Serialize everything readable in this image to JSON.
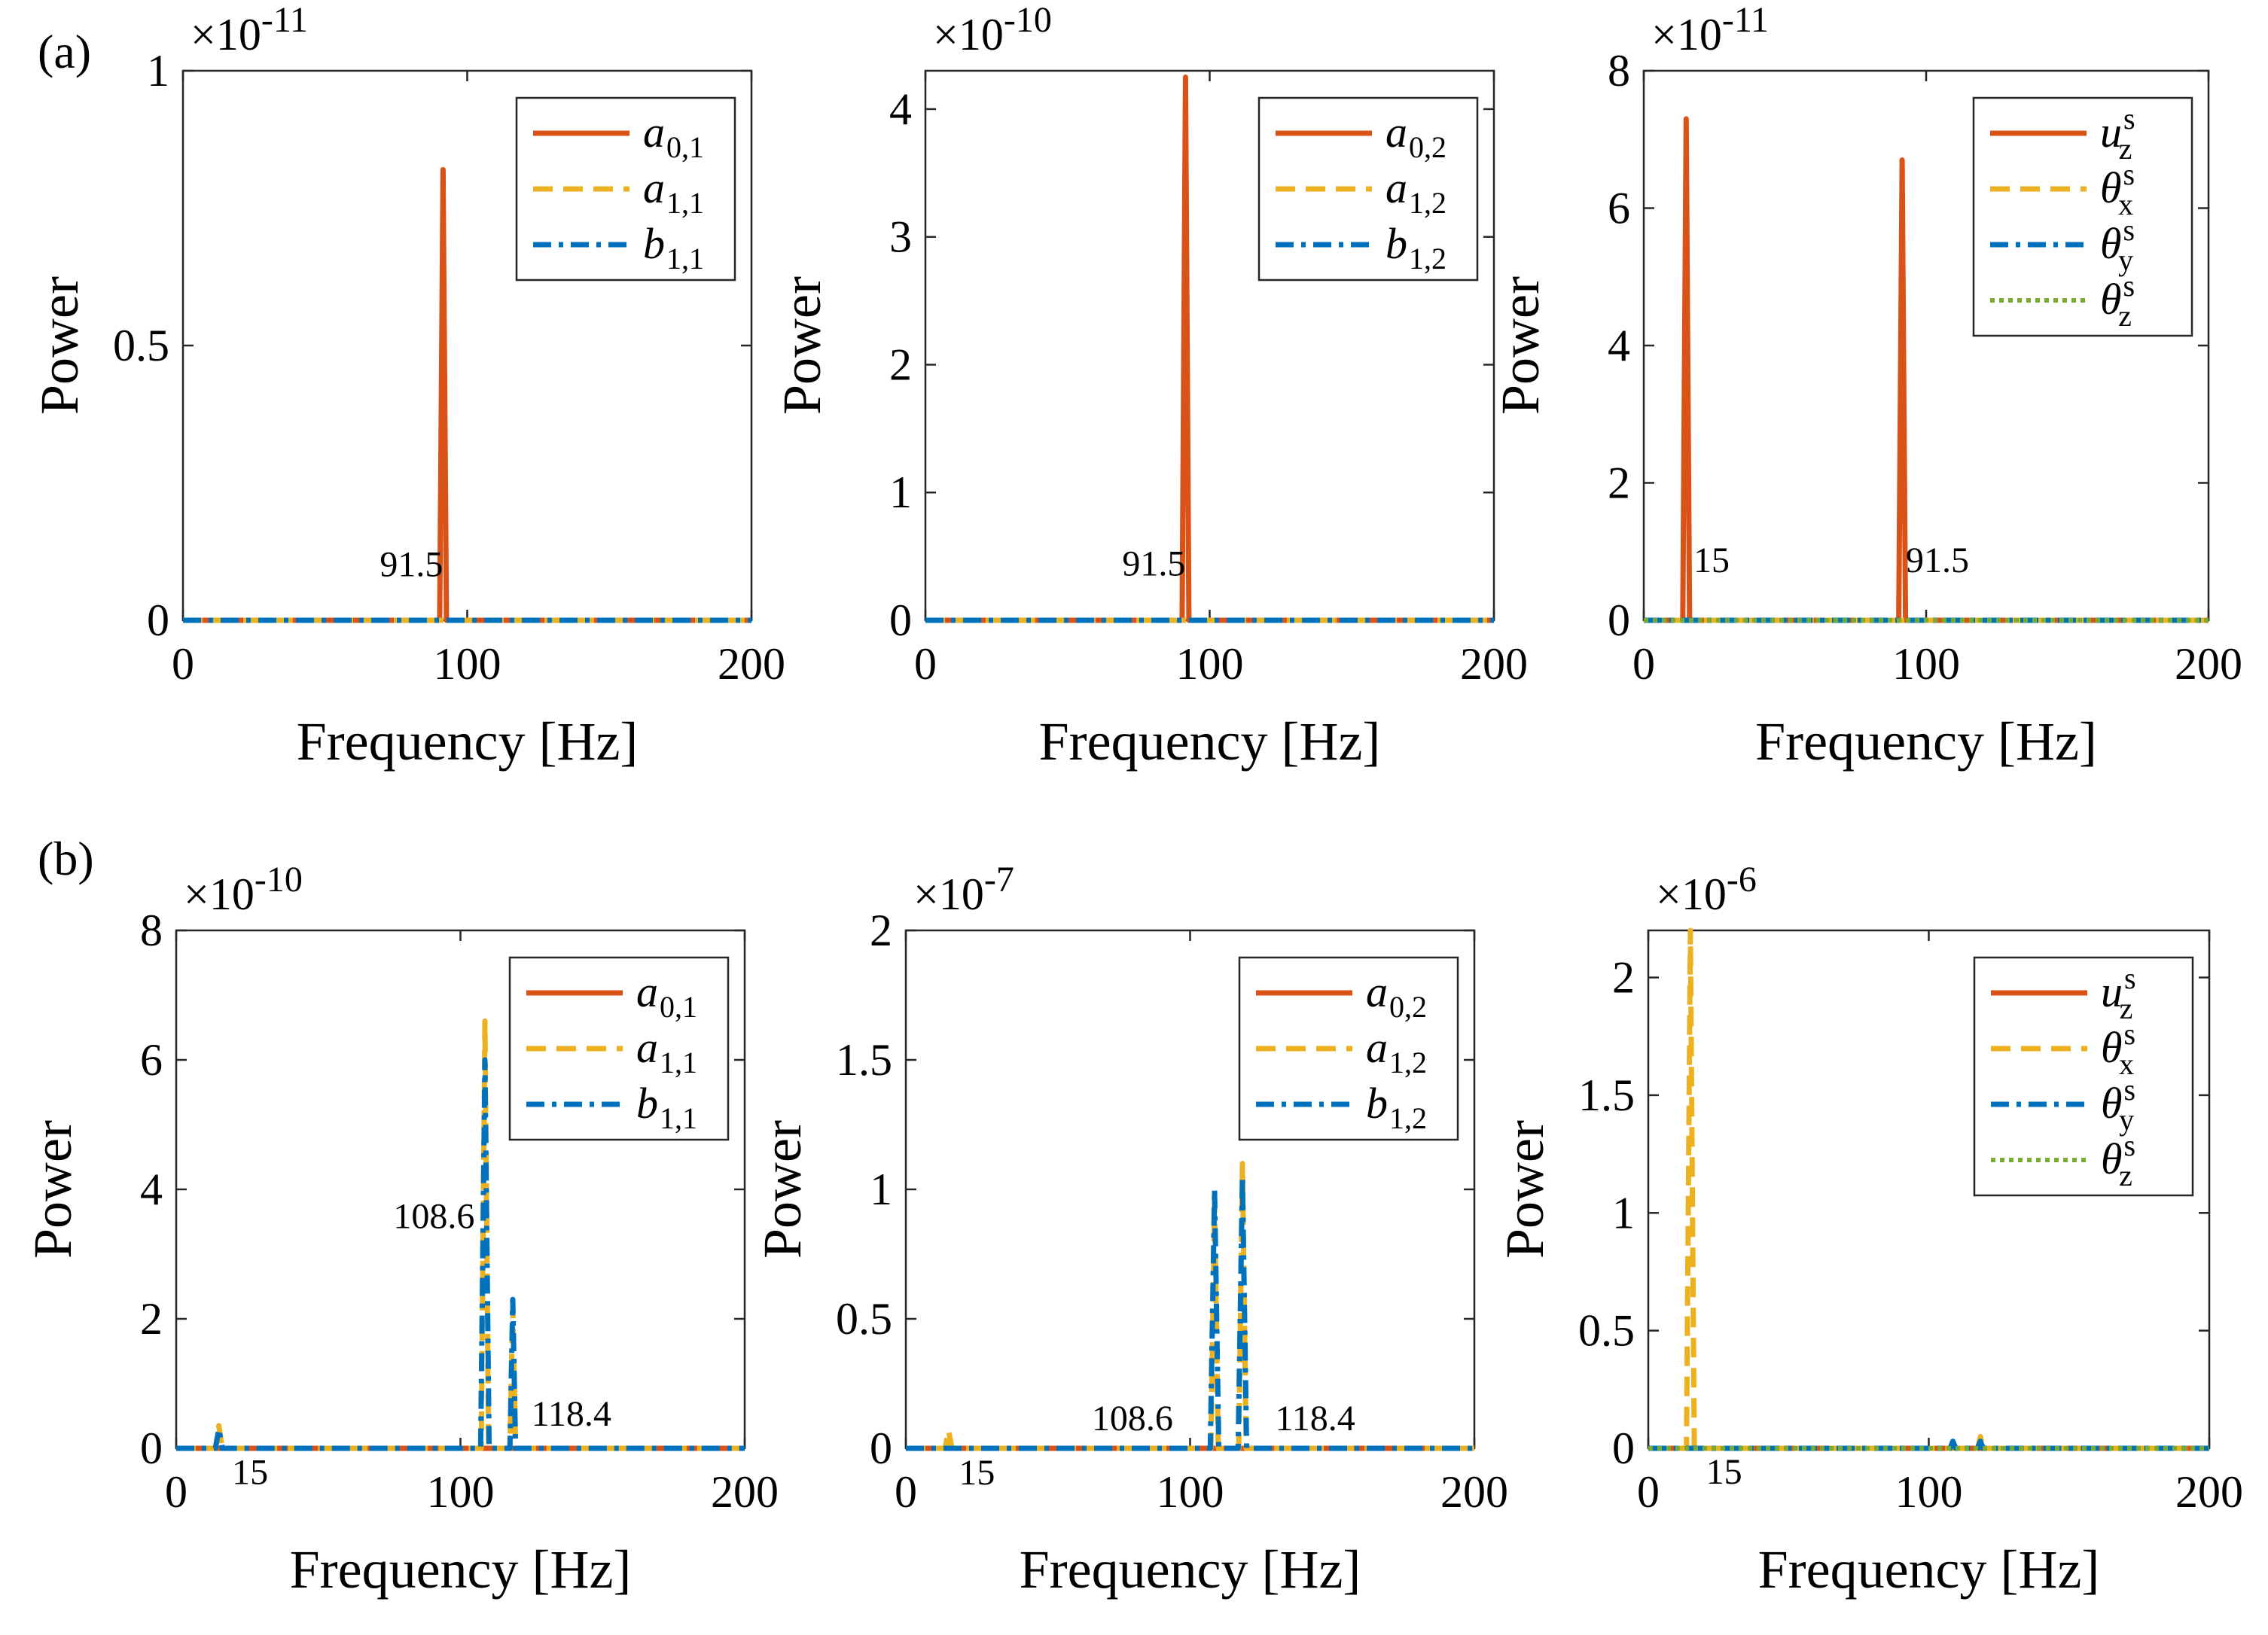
{
  "figure": {
    "panel_labels": [
      "(a)",
      "(b)"
    ]
  },
  "chart_data": [
    {
      "type": "line",
      "row": "a",
      "col": 1,
      "multiplier": {
        "base": "×10",
        "exp": "-11"
      },
      "xlabel": "Frequency [Hz]",
      "ylabel": "Power",
      "xlim": [
        0,
        200
      ],
      "ylim": [
        0,
        1
      ],
      "xticks": [
        0,
        100,
        200
      ],
      "yticks": [
        0,
        0.5,
        1
      ],
      "series": [
        {
          "name": "a0,1",
          "sym": "a",
          "sub": "0,1",
          "sup": "",
          "color": "#D95319",
          "style": "solid",
          "peaks": [
            {
              "x": 91.5,
              "y": 0.82,
              "w": 1.2
            }
          ]
        },
        {
          "name": "a1,1",
          "sym": "a",
          "sub": "1,1",
          "sup": "",
          "color": "#EDB120",
          "style": "dashed",
          "peaks": []
        },
        {
          "name": "b1,1",
          "sym": "b",
          "sub": "1,1",
          "sup": "",
          "color": "#0072BD",
          "style": "dashdot",
          "peaks": []
        }
      ],
      "annotations": [
        {
          "text": "91.5",
          "x": 91.5,
          "y": 0.08,
          "anchor": "end"
        }
      ]
    },
    {
      "type": "line",
      "row": "a",
      "col": 2,
      "multiplier": {
        "base": "×10",
        "exp": "-10"
      },
      "xlabel": "Frequency [Hz]",
      "ylabel": "Power",
      "xlim": [
        0,
        200
      ],
      "ylim": [
        0,
        4.3
      ],
      "xticks": [
        0,
        100,
        200
      ],
      "yticks": [
        0,
        1,
        2,
        3,
        4
      ],
      "series": [
        {
          "name": "a0,2",
          "sym": "a",
          "sub": "0,2",
          "sup": "",
          "color": "#D95319",
          "style": "solid",
          "peaks": [
            {
              "x": 91.5,
              "y": 4.25,
              "w": 1.2
            }
          ]
        },
        {
          "name": "a1,2",
          "sym": "a",
          "sub": "1,2",
          "sup": "",
          "color": "#EDB120",
          "style": "dashed",
          "peaks": []
        },
        {
          "name": "b1,2",
          "sym": "b",
          "sub": "1,2",
          "sup": "",
          "color": "#0072BD",
          "style": "dashdot",
          "peaks": []
        }
      ],
      "annotations": [
        {
          "text": "91.5",
          "x": 91.5,
          "y": 0.35,
          "anchor": "end"
        }
      ]
    },
    {
      "type": "line",
      "row": "a",
      "col": 3,
      "multiplier": {
        "base": "×10",
        "exp": "-11"
      },
      "xlabel": "Frequency [Hz]",
      "ylabel": "Power",
      "xlim": [
        0,
        200
      ],
      "ylim": [
        0,
        8
      ],
      "xticks": [
        0,
        100,
        200
      ],
      "yticks": [
        0,
        2,
        4,
        6,
        8
      ],
      "series": [
        {
          "name": "uz s",
          "sym": "u",
          "sub": "z",
          "sup": "s",
          "color": "#D95319",
          "style": "solid",
          "peaks": [
            {
              "x": 15,
              "y": 7.3,
              "w": 1.2
            },
            {
              "x": 91.5,
              "y": 6.7,
              "w": 1.2
            }
          ]
        },
        {
          "name": "θx s",
          "sym": "θ",
          "sub": "x",
          "sup": "s",
          "color": "#EDB120",
          "style": "dashed",
          "peaks": []
        },
        {
          "name": "θy s",
          "sym": "θ",
          "sub": "y",
          "sup": "s",
          "color": "#0072BD",
          "style": "dashdot",
          "peaks": []
        },
        {
          "name": "θz s",
          "sym": "θ",
          "sub": "z",
          "sup": "s",
          "color": "#77AC30",
          "style": "dotted",
          "peaks": []
        }
      ],
      "annotations": [
        {
          "text": "15",
          "x": 24,
          "y": 0.7,
          "anchor": "middle"
        },
        {
          "text": "91.5",
          "x": 104,
          "y": 0.7,
          "anchor": "middle"
        }
      ]
    },
    {
      "type": "line",
      "row": "b",
      "col": 1,
      "multiplier": {
        "base": "×10",
        "exp": "-10"
      },
      "xlabel": "Frequency [Hz]",
      "ylabel": "Power",
      "xlim": [
        0,
        200
      ],
      "ylim": [
        0,
        8
      ],
      "xticks": [
        0,
        100,
        200
      ],
      "yticks": [
        0,
        2,
        4,
        6,
        8
      ],
      "series": [
        {
          "name": "a0,1",
          "sym": "a",
          "sub": "0,1",
          "sup": "",
          "color": "#D95319",
          "style": "solid",
          "peaks": []
        },
        {
          "name": "a1,1",
          "sym": "a",
          "sub": "1,1",
          "sup": "",
          "color": "#EDB120",
          "style": "dashed",
          "peaks": [
            {
              "x": 15,
              "y": 0.35,
              "w": 1.2
            },
            {
              "x": 108.6,
              "y": 6.6,
              "w": 1.3
            },
            {
              "x": 118.4,
              "y": 2.2,
              "w": 1.0
            }
          ]
        },
        {
          "name": "b1,1",
          "sym": "b",
          "sub": "1,1",
          "sup": "",
          "color": "#0072BD",
          "style": "dashdot",
          "peaks": [
            {
              "x": 15,
              "y": 0.3,
              "w": 1.2
            },
            {
              "x": 108.6,
              "y": 6.0,
              "w": 1.5
            },
            {
              "x": 118.4,
              "y": 2.3,
              "w": 1.0
            }
          ]
        }
      ],
      "annotations": [
        {
          "text": "108.6",
          "x": 105,
          "y": 3.4,
          "anchor": "end"
        },
        {
          "text": "118.4",
          "x": 139,
          "y": 0.35,
          "anchor": "middle"
        },
        {
          "text": "15",
          "x": 26,
          "y": -0.55,
          "anchor": "middle"
        }
      ]
    },
    {
      "type": "line",
      "row": "b",
      "col": 2,
      "multiplier": {
        "base": "×10",
        "exp": "-7"
      },
      "xlabel": "Frequency [Hz]",
      "ylabel": "Power",
      "xlim": [
        0,
        200
      ],
      "ylim": [
        0,
        2
      ],
      "xticks": [
        0,
        100,
        200
      ],
      "yticks": [
        0,
        0.5,
        1,
        1.5,
        2
      ],
      "series": [
        {
          "name": "a0,2",
          "sym": "a",
          "sub": "0,2",
          "sup": "",
          "color": "#D95319",
          "style": "solid",
          "peaks": []
        },
        {
          "name": "a1,2",
          "sym": "a",
          "sub": "1,2",
          "sup": "",
          "color": "#EDB120",
          "style": "dashed",
          "peaks": [
            {
              "x": 15,
              "y": 0.07,
              "w": 1.2
            },
            {
              "x": 108.6,
              "y": 0.95,
              "w": 1.3
            },
            {
              "x": 118.4,
              "y": 1.1,
              "w": 1.3
            }
          ]
        },
        {
          "name": "b1,2",
          "sym": "b",
          "sub": "1,2",
          "sup": "",
          "color": "#0072BD",
          "style": "dashdot",
          "peaks": [
            {
              "x": 108.6,
              "y": 1.0,
              "w": 1.5
            },
            {
              "x": 118.4,
              "y": 1.05,
              "w": 1.5
            }
          ]
        }
      ],
      "annotations": [
        {
          "text": "108.6",
          "x": 94,
          "y": 0.07,
          "anchor": "end"
        },
        {
          "text": "118.4",
          "x": 144,
          "y": 0.07,
          "anchor": "middle"
        },
        {
          "text": "15",
          "x": 25,
          "y": -0.14,
          "anchor": "middle"
        }
      ]
    },
    {
      "type": "line",
      "row": "b",
      "col": 3,
      "multiplier": {
        "base": "×10",
        "exp": "-6"
      },
      "xlabel": "Frequency [Hz]",
      "ylabel": "Power",
      "xlim": [
        0,
        200
      ],
      "ylim": [
        0,
        2.2
      ],
      "xticks": [
        0,
        100,
        200
      ],
      "yticks": [
        0,
        0.5,
        1,
        1.5,
        2
      ],
      "series": [
        {
          "name": "uz s",
          "sym": "u",
          "sub": "z",
          "sup": "s",
          "color": "#D95319",
          "style": "solid",
          "peaks": []
        },
        {
          "name": "θx s",
          "sym": "θ",
          "sub": "x",
          "sup": "s",
          "color": "#EDB120",
          "style": "dashed",
          "peaks": [
            {
              "x": 15,
              "y": 2.2,
              "w": 1.4
            },
            {
              "x": 118.4,
              "y": 0.05,
              "w": 1.0
            }
          ]
        },
        {
          "name": "θy s",
          "sym": "θ",
          "sub": "y",
          "sup": "s",
          "color": "#0072BD",
          "style": "dashdot",
          "peaks": [
            {
              "x": 108.6,
              "y": 0.03,
              "w": 1.0
            },
            {
              "x": 118.4,
              "y": 0.03,
              "w": 1.0
            }
          ]
        },
        {
          "name": "θz s",
          "sym": "θ",
          "sub": "z",
          "sup": "s",
          "color": "#77AC30",
          "style": "dotted",
          "peaks": []
        }
      ],
      "annotations": [
        {
          "text": "15",
          "x": 27,
          "y": -0.15,
          "anchor": "middle"
        }
      ]
    }
  ]
}
